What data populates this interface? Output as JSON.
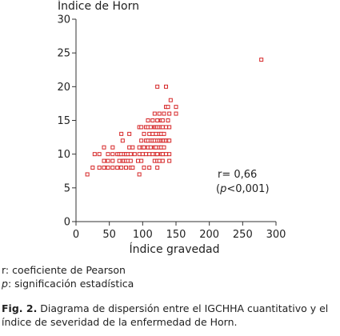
{
  "chart_data": {
    "type": "scatter",
    "ylabel": "Índice de Horn",
    "xlabel": "Índice gravedad",
    "xlim": [
      0,
      300
    ],
    "ylim": [
      0,
      30
    ],
    "xticks": [
      0,
      50,
      100,
      150,
      200,
      250,
      300
    ],
    "yticks": [
      0,
      5,
      10,
      15,
      20,
      25,
      30
    ],
    "marker": "open-square",
    "color": "#d62728",
    "annotation": {
      "line1": "r= 0,66",
      "line2_italic": "p",
      "line2_rest": "<0,001",
      "line2_open": "("
    },
    "points": [
      [
        17,
        7
      ],
      [
        25,
        8
      ],
      [
        28,
        10
      ],
      [
        35,
        8
      ],
      [
        35,
        10
      ],
      [
        42,
        8
      ],
      [
        42,
        9
      ],
      [
        42,
        11
      ],
      [
        48,
        8
      ],
      [
        48,
        9
      ],
      [
        48,
        10
      ],
      [
        55,
        8
      ],
      [
        55,
        9
      ],
      [
        55,
        10
      ],
      [
        55,
        11
      ],
      [
        62,
        8
      ],
      [
        62,
        10
      ],
      [
        65,
        9
      ],
      [
        65,
        10
      ],
      [
        68,
        8
      ],
      [
        68,
        10
      ],
      [
        68,
        13
      ],
      [
        70,
        9
      ],
      [
        70,
        12
      ],
      [
        72,
        9
      ],
      [
        72,
        10
      ],
      [
        75,
        8
      ],
      [
        75,
        9
      ],
      [
        75,
        10
      ],
      [
        78,
        9
      ],
      [
        78,
        10
      ],
      [
        80,
        11
      ],
      [
        80,
        13
      ],
      [
        82,
        8
      ],
      [
        82,
        9
      ],
      [
        82,
        10
      ],
      [
        85,
        8
      ],
      [
        85,
        11
      ],
      [
        88,
        10
      ],
      [
        93,
        9
      ],
      [
        95,
        7
      ],
      [
        95,
        10
      ],
      [
        95,
        11
      ],
      [
        95,
        14
      ],
      [
        98,
        9
      ],
      [
        98,
        12
      ],
      [
        98,
        14
      ],
      [
        100,
        10
      ],
      [
        100,
        11
      ],
      [
        102,
        8
      ],
      [
        102,
        11
      ],
      [
        102,
        13
      ],
      [
        105,
        10
      ],
      [
        105,
        12
      ],
      [
        105,
        14
      ],
      [
        108,
        11
      ],
      [
        108,
        12
      ],
      [
        108,
        14
      ],
      [
        108,
        15
      ],
      [
        110,
        8
      ],
      [
        110,
        10
      ],
      [
        110,
        13
      ],
      [
        112,
        11
      ],
      [
        112,
        12
      ],
      [
        112,
        14
      ],
      [
        115,
        10
      ],
      [
        115,
        12
      ],
      [
        115,
        13
      ],
      [
        115,
        15
      ],
      [
        118,
        9
      ],
      [
        118,
        11
      ],
      [
        118,
        12
      ],
      [
        118,
        14
      ],
      [
        118,
        16
      ],
      [
        120,
        10
      ],
      [
        120,
        11
      ],
      [
        120,
        13
      ],
      [
        120,
        14
      ],
      [
        122,
        8
      ],
      [
        122,
        9
      ],
      [
        122,
        10
      ],
      [
        122,
        12
      ],
      [
        122,
        14
      ],
      [
        122,
        15
      ],
      [
        122,
        20
      ],
      [
        125,
        9
      ],
      [
        125,
        11
      ],
      [
        125,
        12
      ],
      [
        125,
        13
      ],
      [
        125,
        14
      ],
      [
        125,
        16
      ],
      [
        128,
        10
      ],
      [
        128,
        11
      ],
      [
        128,
        12
      ],
      [
        128,
        13
      ],
      [
        128,
        14
      ],
      [
        128,
        15
      ],
      [
        130,
        9
      ],
      [
        130,
        10
      ],
      [
        130,
        12
      ],
      [
        130,
        14
      ],
      [
        130,
        15
      ],
      [
        132,
        11
      ],
      [
        132,
        12
      ],
      [
        132,
        13
      ],
      [
        132,
        16
      ],
      [
        135,
        10
      ],
      [
        135,
        12
      ],
      [
        135,
        14
      ],
      [
        135,
        17
      ],
      [
        135,
        20
      ],
      [
        138,
        12
      ],
      [
        138,
        15
      ],
      [
        138,
        17
      ],
      [
        140,
        9
      ],
      [
        140,
        10
      ],
      [
        140,
        12
      ],
      [
        140,
        14
      ],
      [
        140,
        16
      ],
      [
        142,
        18
      ],
      [
        150,
        16
      ],
      [
        150,
        17
      ],
      [
        278,
        24
      ]
    ]
  },
  "notes": {
    "line1_sym": "r",
    "line1_rest": ": coeficiente de Pearson",
    "line2_sym": "p",
    "line2_rest": ": significación estadística"
  },
  "caption": {
    "label": "Fig. 2.",
    "text": " Diagrama de dispersión entre el IGCHHA cuantitativo y el índice de severidad de la enfermedad de Horn."
  }
}
